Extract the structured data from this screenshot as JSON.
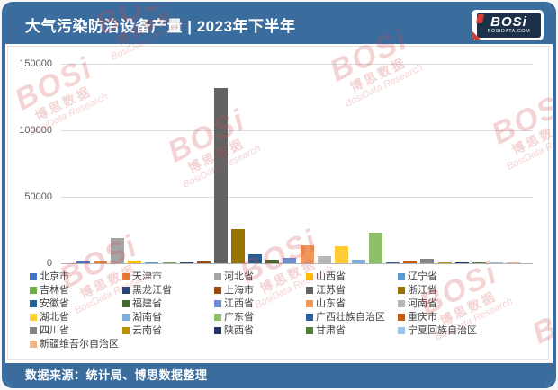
{
  "header": {
    "title": "大气污染防治设备产量 | 2023年下半年",
    "logo": {
      "brand": "BOSi",
      "site": "BOSIDATA.COM"
    }
  },
  "footer": {
    "source": "数据来源：统计局、博思数据整理"
  },
  "watermark": {
    "brand": "BOSi",
    "cn": "博思数据",
    "en": "BosiData Research"
  },
  "chart_data": {
    "type": "bar",
    "title": "大气污染防治设备产量 | 2023年下半年",
    "xlabel": "",
    "ylabel": "",
    "ylim": [
      0,
      150000
    ],
    "yticks": [
      0,
      50000,
      100000,
      150000
    ],
    "grid": true,
    "legend_position": "bottom",
    "categories": [
      "北京市",
      "天津市",
      "河北省",
      "山西省",
      "辽宁省",
      "吉林省",
      "黑龙江省",
      "上海市",
      "江苏省",
      "浙江省",
      "安徽省",
      "福建省",
      "江西省",
      "山东省",
      "河南省",
      "湖北省",
      "湖南省",
      "广东省",
      "广西壮族自治区",
      "重庆市",
      "四川省",
      "云南省",
      "陕西省",
      "甘肃省",
      "宁夏回族自治区",
      "新疆维吾尔自治区"
    ],
    "values": [
      1300,
      1300,
      19000,
      2000,
      800,
      800,
      800,
      1500,
      132000,
      26000,
      6700,
      3000,
      4300,
      13400,
      5600,
      12800,
      2400,
      22800,
      900,
      2300,
      3100,
      200,
      700,
      700,
      550,
      550
    ],
    "colors": [
      "#4472C4",
      "#ED7D31",
      "#A5A5A5",
      "#FFC000",
      "#5B9BD5",
      "#70AD47",
      "#264478",
      "#9E480E",
      "#636363",
      "#997300",
      "#255E91",
      "#43682B",
      "#698ED0",
      "#F1975A",
      "#B7B7B7",
      "#FFCD33",
      "#7CAFDD",
      "#8CC168",
      "#2E5FA3",
      "#C55A11",
      "#848484",
      "#BF9000",
      "#203864",
      "#548235",
      "#9DC3E6",
      "#F4B183"
    ]
  },
  "colors": {
    "frame": "#3a6d9e",
    "header_bg": "#3a6d9e",
    "footer_bg": "#3a6d9e",
    "gridline": "#dcdcdc",
    "watermark": "#cf4b4b"
  }
}
